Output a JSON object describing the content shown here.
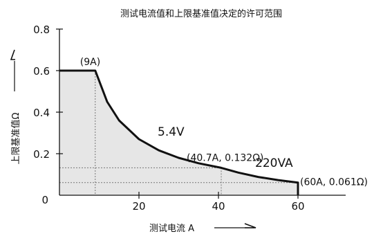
{
  "chart_data": {
    "type": "area",
    "title": "测试电流值和上限基准值决定的许可范围",
    "xlabel": "测试电流 A",
    "ylabel": "上限基准值Ω",
    "xlim": [
      0,
      72
    ],
    "ylim": [
      0,
      0.8
    ],
    "x_ticks": [
      {
        "value": 20,
        "label": "20"
      },
      {
        "value": 40,
        "label": "40"
      },
      {
        "value": 60,
        "label": "60"
      }
    ],
    "y_ticks": [
      {
        "value": 0,
        "label": "0"
      },
      {
        "value": 0.2,
        "label": "0.2"
      },
      {
        "value": 0.4,
        "label": "0.4"
      },
      {
        "value": 0.6,
        "label": "0.6"
      },
      {
        "value": 0.8,
        "label": "0.8"
      }
    ],
    "grid": false,
    "boundary": [
      {
        "x": 0,
        "y": 0.6
      },
      {
        "x": 9,
        "y": 0.6
      },
      {
        "x": 12,
        "y": 0.45
      },
      {
        "x": 15,
        "y": 0.36
      },
      {
        "x": 20,
        "y": 0.27
      },
      {
        "x": 25,
        "y": 0.216
      },
      {
        "x": 30,
        "y": 0.18
      },
      {
        "x": 35,
        "y": 0.154
      },
      {
        "x": 40.7,
        "y": 0.132
      },
      {
        "x": 45,
        "y": 0.109
      },
      {
        "x": 50,
        "y": 0.088
      },
      {
        "x": 55,
        "y": 0.073
      },
      {
        "x": 60,
        "y": 0.061
      },
      {
        "x": 60,
        "y": 0
      }
    ],
    "annotations": [
      {
        "text": "(9A)",
        "x": 9,
        "y": 0.6
      },
      {
        "text": "5.4V",
        "x": 24,
        "y": 0.3
      },
      {
        "text": "(40.7A, 0.132Ω)",
        "x": 40.7,
        "y": 0.132
      },
      {
        "text": "220VA",
        "x": 52,
        "y": 0.09
      },
      {
        "text": "(60A, 0.061Ω)",
        "x": 60,
        "y": 0.061
      }
    ],
    "guides": [
      {
        "x": 9,
        "y": 0.6
      },
      {
        "x": 40.7,
        "y": 0.132
      },
      {
        "x": 60,
        "y": 0.061
      }
    ]
  }
}
